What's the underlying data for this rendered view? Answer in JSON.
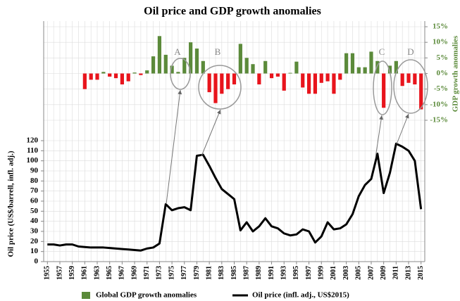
{
  "chart_data": {
    "type": "combo",
    "title": "Oil price and GDP growth anomalies",
    "ylabel": "Oil price (US$/barrell, infl. adj.)",
    "y2label": "GDP growth anomalies",
    "x": [
      1955,
      1956,
      1957,
      1958,
      1959,
      1960,
      1961,
      1962,
      1963,
      1964,
      1965,
      1966,
      1967,
      1968,
      1969,
      1970,
      1971,
      1972,
      1973,
      1974,
      1975,
      1976,
      1977,
      1978,
      1979,
      1980,
      1981,
      1982,
      1983,
      1984,
      1985,
      1986,
      1987,
      1988,
      1989,
      1990,
      1991,
      1992,
      1993,
      1994,
      1995,
      1996,
      1997,
      1998,
      1999,
      2000,
      2001,
      2002,
      2003,
      2004,
      2005,
      2006,
      2007,
      2008,
      2009,
      2010,
      2011,
      2012,
      2013,
      2014,
      2015
    ],
    "xlim": [
      1954.4,
      2015.6
    ],
    "xticks": [
      1955,
      1957,
      1959,
      1961,
      1963,
      1965,
      1967,
      1969,
      1971,
      1973,
      1975,
      1977,
      1979,
      1981,
      1983,
      1985,
      1987,
      1989,
      1991,
      1993,
      1995,
      1997,
      1999,
      2001,
      2003,
      2005,
      2007,
      2009,
      2011,
      2013,
      2015
    ],
    "ylim": [
      0,
      120
    ],
    "yticks": [
      0,
      10,
      20,
      30,
      40,
      50,
      60,
      70,
      80,
      90,
      100,
      110,
      120
    ],
    "y2lim": [
      -15,
      15
    ],
    "y2ticks": [
      {
        "value": 15,
        "label": "15%"
      },
      {
        "value": 10,
        "label": "10%"
      },
      {
        "value": 5,
        "label": "5%"
      },
      {
        "value": 0,
        "label": "0%"
      },
      {
        "value": -5,
        "label": "-5%"
      },
      {
        "value": -10,
        "label": "-10%"
      },
      {
        "value": -15,
        "label": "-15%"
      }
    ],
    "grid": true,
    "legend": "bottom",
    "series": [
      {
        "name": "Global GDP growth anomalies",
        "type": "bar",
        "axis": "y2",
        "color": "#5b8a3a",
        "negative_color": "#e8141c",
        "values": [
          null,
          null,
          null,
          null,
          null,
          null,
          -5,
          -2,
          -2,
          0.5,
          -1,
          -1.5,
          -3.5,
          -2.5,
          0.3,
          -0.5,
          1,
          5.5,
          12,
          6,
          2.5,
          0.5,
          5,
          10,
          8,
          4,
          -6,
          -9.5,
          -6.5,
          -5,
          -3.5,
          9.5,
          5,
          3,
          -3.5,
          4,
          -1.5,
          -1,
          -5.5,
          0.2,
          3.8,
          -4.5,
          -6.5,
          -6.5,
          -3,
          -2.5,
          -6.5,
          -2,
          6.5,
          6.5,
          2,
          2,
          7,
          4,
          -11,
          2.5,
          4,
          -4,
          -3,
          -3.5,
          -11.5
        ]
      },
      {
        "name": "Oil price (infl. adj., US$2015)",
        "type": "line",
        "color": "#000000",
        "values": [
          17,
          17,
          16,
          17,
          17,
          15,
          14.5,
          14,
          14,
          14,
          13.5,
          13,
          12.5,
          12,
          11.5,
          11,
          13,
          14,
          18,
          57,
          51,
          53,
          54,
          51,
          105,
          106,
          95,
          83,
          72,
          67,
          62,
          31,
          39,
          30,
          35,
          43,
          35,
          33,
          28,
          26,
          27,
          32,
          30,
          19,
          25,
          39,
          32,
          33,
          37,
          47,
          65,
          76,
          82,
          107,
          68,
          88,
          117,
          114,
          110,
          100,
          52
        ]
      }
    ],
    "annotations": [
      "A",
      "B",
      "C",
      "D"
    ]
  }
}
